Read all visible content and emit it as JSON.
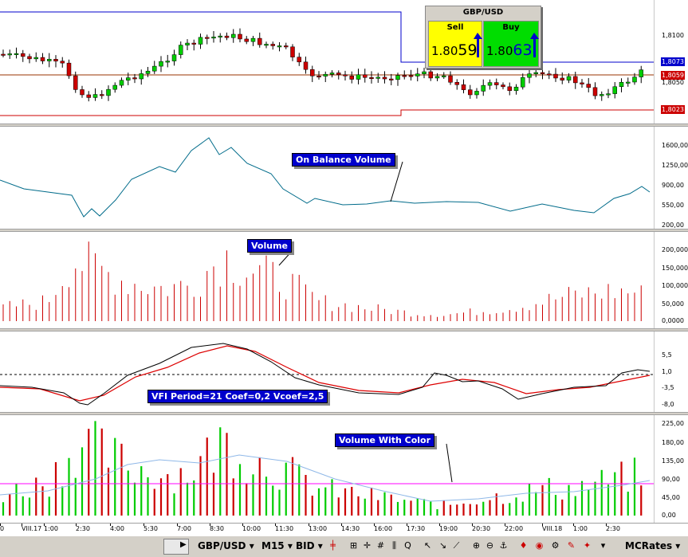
{
  "ticket": {
    "symbol": "GBP/USD",
    "sell_label": "Sell",
    "sell_prefix": "1.80",
    "sell_suffix": "59",
    "buy_label": "Buy",
    "buy_prefix": "1.80",
    "buy_suffix": "63"
  },
  "price_axis": {
    "ticks": [
      "1,8100",
      "1,8050"
    ],
    "labels": [
      {
        "text": "1,8073",
        "color": "#0000cc"
      },
      {
        "text": "1,8059",
        "color": "#cc0000"
      },
      {
        "text": "1,8023",
        "color": "#cc0000"
      }
    ]
  },
  "obv": {
    "title": "On Balance Volume",
    "ticks": [
      "1600,00",
      "1250,00",
      "900,00",
      "550,00",
      "200,00"
    ]
  },
  "volume": {
    "title": "Volume",
    "ticks": [
      "200,000",
      "150,000",
      "100,000",
      "50,000",
      "0,0000"
    ]
  },
  "vfi": {
    "title": "VFI Period=21 Coef=0,2 Vcoef=2,5",
    "ticks": [
      "5,5",
      "1,0",
      "-3,5",
      "-8,0"
    ]
  },
  "vwc": {
    "title": "Volume With Color",
    "ticks": [
      "225,00",
      "180,00",
      "135,00",
      "90,00",
      "45,00",
      "0,00"
    ]
  },
  "time_axis": [
    "0",
    "VIII.17",
    "1:00",
    "2:30",
    "4:00",
    "5:30",
    "7:00",
    "8:30",
    "10:00",
    "11:30",
    "13:00",
    "14:30",
    "16:00",
    "17:30",
    "19:00",
    "20:30",
    "22:00",
    "VIII.18",
    "1:00",
    "2:30"
  ],
  "toolbar": {
    "symbol": "GBP/USD",
    "timeframe": "M15",
    "price_type": "BID",
    "provider": "MCRates"
  },
  "colors": {
    "up_candle": "#00cc00",
    "down_candle": "#cc0000",
    "obv_line": "#006b8a",
    "vfi_black": "#000000",
    "vfi_red": "#dd0000",
    "avg_line": "#ff00ff",
    "callout_bg": "#0000cc"
  },
  "icons": [
    "play-icon",
    "chart-type-icon",
    "crosshair-icon",
    "grid-icon",
    "search-icon",
    "cursor-icon",
    "zoom-in-icon",
    "zoom-out-icon"
  ]
}
